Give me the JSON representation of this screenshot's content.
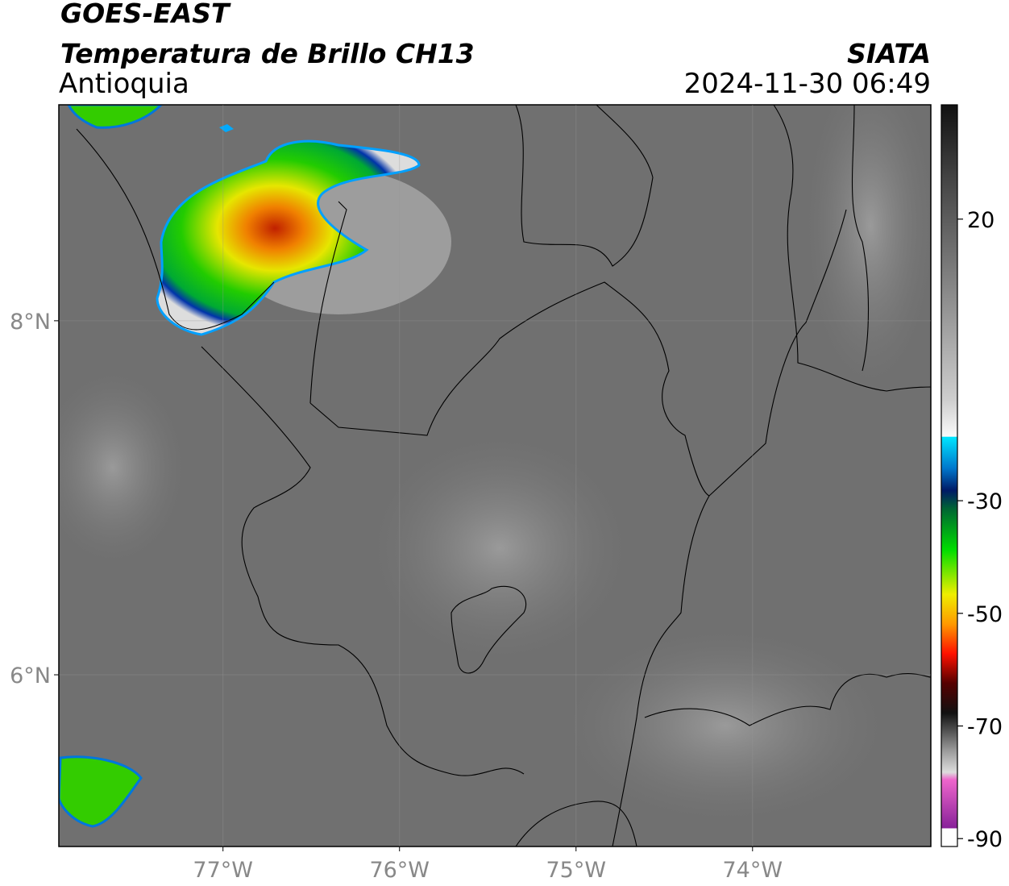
{
  "header": {
    "satellite": "GOES-EAST",
    "title": "Temperatura de Brillo CH13",
    "region": "Antioquia",
    "source": "SIATA",
    "datetime": "2024-11-30 06:49"
  },
  "map": {
    "xlim": [
      -77.93,
      -72.99
    ],
    "ylim": [
      5.03,
      9.22
    ],
    "xticks": [
      {
        "value": -77,
        "label": "77°W"
      },
      {
        "value": -76,
        "label": "76°W"
      },
      {
        "value": -75,
        "label": "75°W"
      },
      {
        "value": -74,
        "label": "74°W"
      }
    ],
    "yticks": [
      {
        "value": 8,
        "label": "8°N"
      },
      {
        "value": 6,
        "label": "6°N"
      }
    ]
  },
  "colorbar": {
    "lim": [
      -91.4,
      40.3
    ],
    "ticks": [
      20,
      -30,
      -50,
      -70,
      -90
    ]
  }
}
